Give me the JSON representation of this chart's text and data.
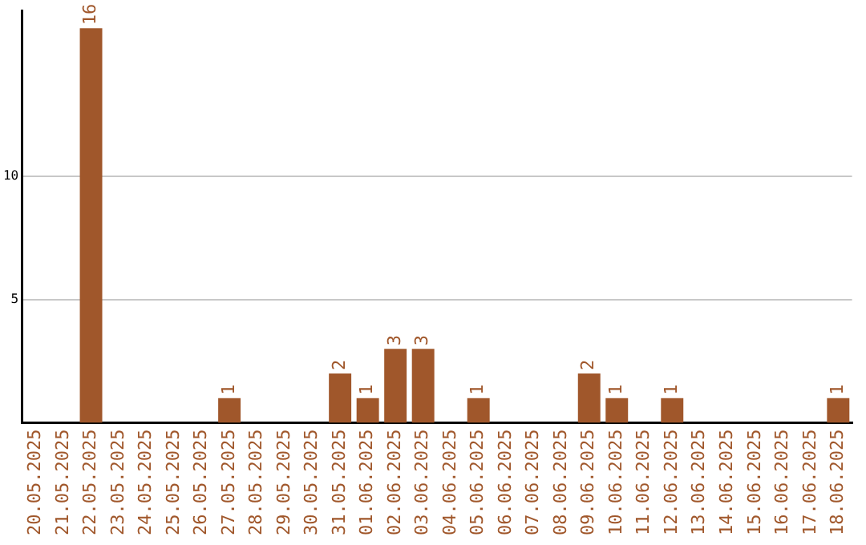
{
  "chart_data": {
    "type": "bar",
    "categories": [
      "20.05.2025",
      "21.05.2025",
      "22.05.2025",
      "23.05.2025",
      "24.05.2025",
      "25.05.2025",
      "26.05.2025",
      "27.05.2025",
      "28.05.2025",
      "29.05.2025",
      "30.05.2025",
      "31.05.2025",
      "01.06.2025",
      "02.06.2025",
      "03.06.2025",
      "04.06.2025",
      "05.06.2025",
      "06.06.2025",
      "07.06.2025",
      "08.06.2025",
      "09.06.2025",
      "10.06.2025",
      "11.06.2025",
      "12.06.2025",
      "13.06.2025",
      "14.06.2025",
      "15.06.2025",
      "16.06.2025",
      "17.06.2025",
      "18.06.2025"
    ],
    "values": [
      0,
      0,
      16,
      0,
      0,
      0,
      0,
      1,
      0,
      0,
      0,
      2,
      1,
      3,
      3,
      0,
      1,
      0,
      0,
      0,
      2,
      1,
      0,
      1,
      0,
      0,
      0,
      0,
      0,
      1
    ],
    "value_labels": [
      null,
      null,
      "16",
      null,
      null,
      null,
      null,
      "1",
      null,
      null,
      null,
      "2",
      "1",
      "3",
      "3",
      null,
      "1",
      null,
      null,
      null,
      "2",
      "1",
      null,
      "1",
      null,
      null,
      null,
      null,
      null,
      "1"
    ],
    "color": "#a0572b",
    "ylim": [
      0,
      16.7
    ],
    "yticks": [
      5,
      10
    ],
    "grid": "y",
    "legend": false
  }
}
